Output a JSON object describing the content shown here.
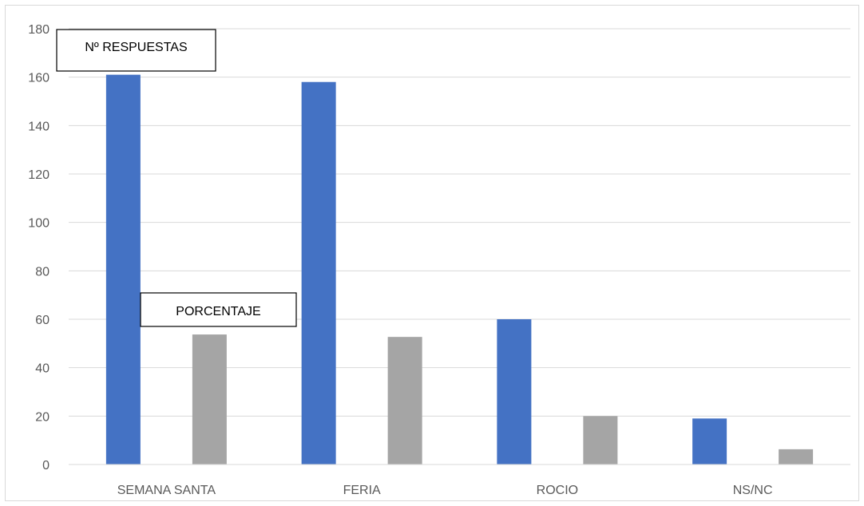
{
  "chart_data": {
    "type": "bar",
    "categories": [
      "SEMANA SANTA",
      "FERIA",
      "ROCIO",
      "NS/NC"
    ],
    "series": [
      {
        "name": "Nº RESPUESTAS",
        "values": [
          161,
          158,
          60,
          19
        ],
        "color": "#4472c4"
      },
      {
        "name": "PORCENTAJE",
        "values": [
          53.7,
          52.7,
          20,
          6.3
        ],
        "color": "#a5a5a5"
      }
    ],
    "y_ticks": [
      "0",
      "20",
      "40",
      "60",
      "80",
      "100",
      "120",
      "140",
      "160",
      "180"
    ],
    "ylim": [
      0,
      180
    ],
    "grid": true,
    "gridline_color": "#d9d9d9",
    "annotations": [
      {
        "text": "Nº RESPUESTAS",
        "series": "Nº RESPUESTAS"
      },
      {
        "text": "PORCENTAJE",
        "series": "PORCENTAJE"
      }
    ]
  }
}
